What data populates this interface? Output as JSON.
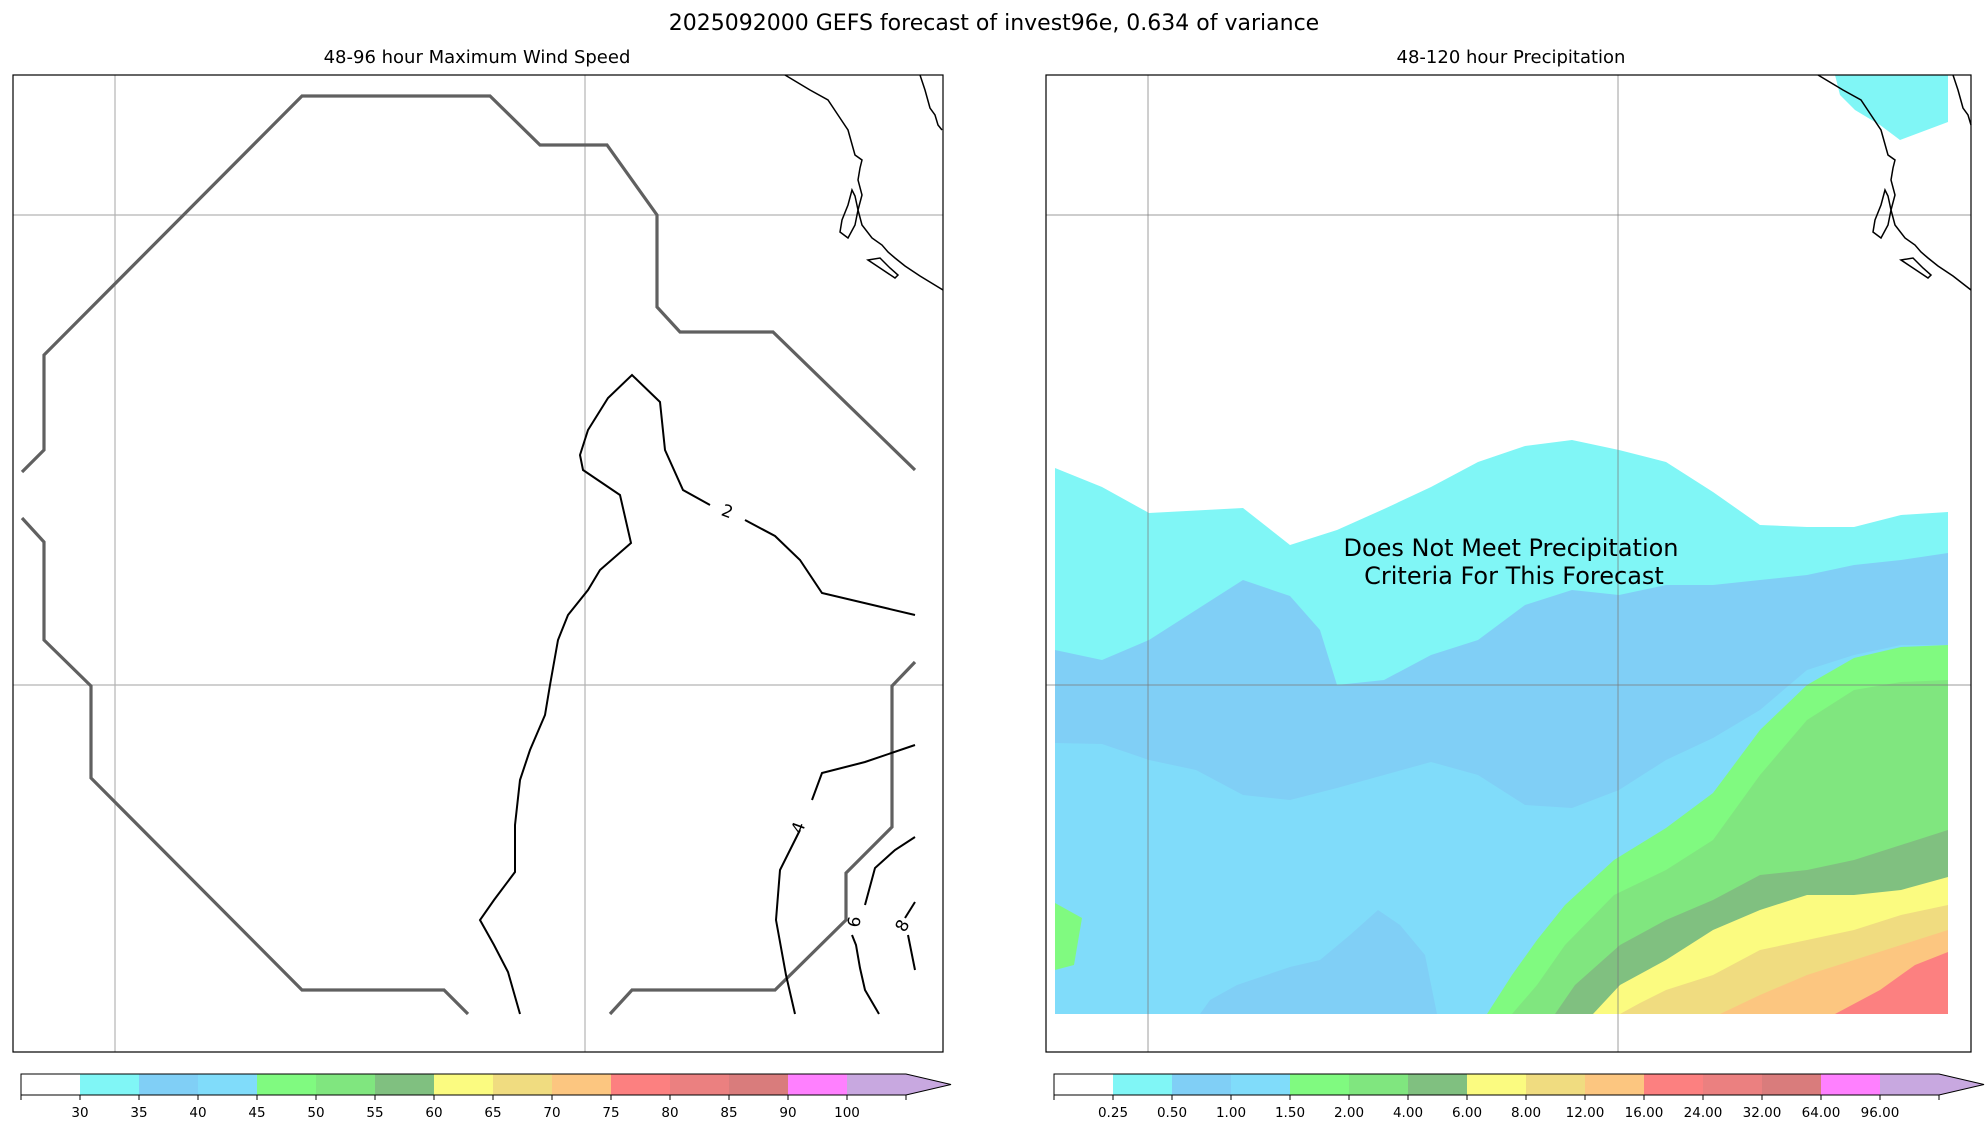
{
  "figure": {
    "title": "2025092000 GEFS forecast of invest96e, 0.634 of variance"
  },
  "chart_data": [
    {
      "type": "contour",
      "title": "48-96 hour Maximum Wind Speed",
      "contour_labels": [
        "2",
        "4",
        "6",
        "8"
      ],
      "colorbar": {
        "ticks": [
          "30",
          "35",
          "40",
          "45",
          "50",
          "55",
          "60",
          "65",
          "70",
          "75",
          "80",
          "85",
          "90",
          "100"
        ],
        "colors": [
          "#ffffff",
          "#80f6f6",
          "#80cff6",
          "#80dcfa",
          "#80fa80",
          "#80e67f",
          "#80c080",
          "#fbfb80",
          "#f0dc80",
          "#fcc680",
          "#fc8080",
          "#eb8080",
          "#d97c7c",
          "#ff80ff",
          "#c8a8e0"
        ],
        "extend": "max"
      }
    },
    {
      "type": "filled_contour",
      "title": "48-120 hour Precipitation",
      "annotation_line1": "Does Not Meet Precipitation",
      "annotation_line2": "Criteria For This Forecast",
      "colorbar": {
        "ticks": [
          "0.25",
          "0.50",
          "1.00",
          "1.50",
          "2.00",
          "4.00",
          "6.00",
          "8.00",
          "12.00",
          "16.00",
          "24.00",
          "32.00",
          "64.00",
          "96.00"
        ],
        "colors": [
          "#ffffff",
          "#80f6f6",
          "#80cff6",
          "#80dcfa",
          "#80fa80",
          "#80e67f",
          "#80c080",
          "#fbfb80",
          "#f0dc80",
          "#fcc680",
          "#fc8080",
          "#eb8080",
          "#d97c7c",
          "#ff80ff",
          "#c8a8e0"
        ],
        "extend": "max"
      }
    }
  ]
}
